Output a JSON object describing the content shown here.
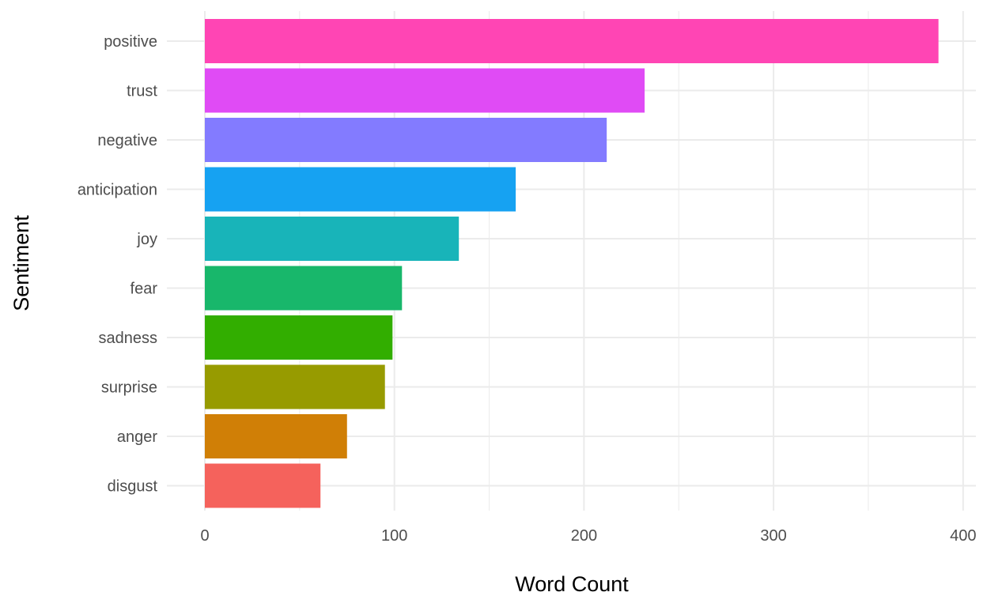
{
  "chart_data": {
    "type": "bar",
    "orientation": "horizontal",
    "title": "",
    "xlabel": "Word Count",
    "ylabel": "Sentiment",
    "xlim": [
      0,
      405
    ],
    "x_ticks": [
      0,
      100,
      200,
      300,
      400
    ],
    "x_tick_labels": [
      "0",
      "100",
      "200",
      "300",
      "400"
    ],
    "grid": true,
    "legend": "none",
    "categories": [
      "positive",
      "trust",
      "negative",
      "anticipation",
      "joy",
      "fear",
      "sadness",
      "surprise",
      "anger",
      "disgust"
    ],
    "values": [
      387,
      232,
      212,
      164,
      134,
      104,
      99,
      95,
      75,
      61
    ],
    "colors": [
      "#FF45B4",
      "#E04BF5",
      "#837BFF",
      "#16A2F2",
      "#18B4B9",
      "#18B76B",
      "#32AE00",
      "#979B00",
      "#D07F06",
      "#F5625C"
    ]
  }
}
